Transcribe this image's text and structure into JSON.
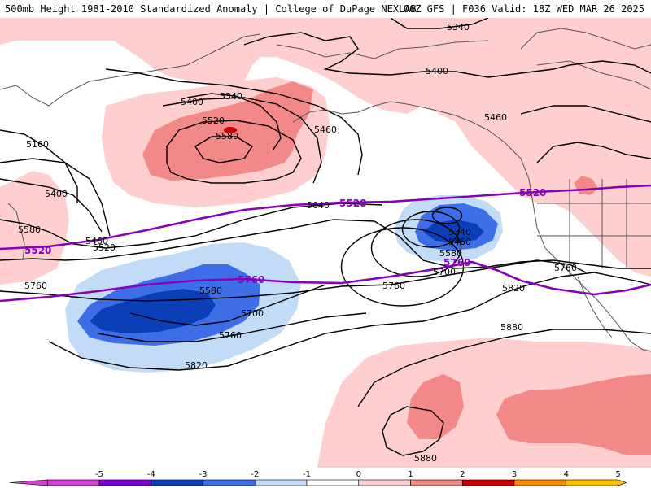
{
  "header": {
    "title_left": "500mb Height 1981-2010 Standardized Anomaly | College of DuPage NEXLAB",
    "title_right": "06Z GFS | F036 Valid: 18Z WED MAR 26 2025"
  },
  "colors": {
    "anom_neg5": "#d63fd6",
    "anom_neg4": "#7b00d1",
    "anom_neg3": "#0a3fb8",
    "anom_neg2": "#3d6ee8",
    "anom_neg1": "#c2dcf7",
    "anom_0": "#ffffff",
    "anom_pos1": "#ffcece",
    "anom_pos2": "#f28888",
    "anom_pos3": "#c80000",
    "anom_pos4": "#ff8a00",
    "anom_pos5": "#ffbf00",
    "reference_contour": "#8800bb",
    "height_contour": "#000000",
    "coastline": "#555555"
  },
  "height_labels": [
    {
      "text": "5340"
    },
    {
      "text": "5400"
    },
    {
      "text": "5340"
    },
    {
      "text": "5400"
    },
    {
      "text": "5520"
    },
    {
      "text": "5580"
    },
    {
      "text": "5460"
    },
    {
      "text": "5460"
    },
    {
      "text": "5160"
    },
    {
      "text": "5400"
    },
    {
      "text": "5580"
    },
    {
      "text": "5460"
    },
    {
      "text": "5520"
    },
    {
      "text": "5640"
    },
    {
      "text": "5340"
    },
    {
      "text": "5460"
    },
    {
      "text": "5580"
    },
    {
      "text": "5700"
    },
    {
      "text": "5760"
    },
    {
      "text": "5760"
    },
    {
      "text": "5580"
    },
    {
      "text": "5700"
    },
    {
      "text": "5760"
    },
    {
      "text": "5760"
    },
    {
      "text": "5820"
    },
    {
      "text": "5820"
    },
    {
      "text": "5880"
    },
    {
      "text": "5880"
    }
  ],
  "reference_labels": [
    {
      "text": "5520"
    },
    {
      "text": "5520"
    },
    {
      "text": "5520"
    },
    {
      "text": "5760"
    },
    {
      "text": "5760"
    }
  ],
  "colorbar_ticks": [
    "-5",
    "-4",
    "-3",
    "-2",
    "-1",
    "0",
    "1",
    "2",
    "3",
    "4",
    "5"
  ]
}
